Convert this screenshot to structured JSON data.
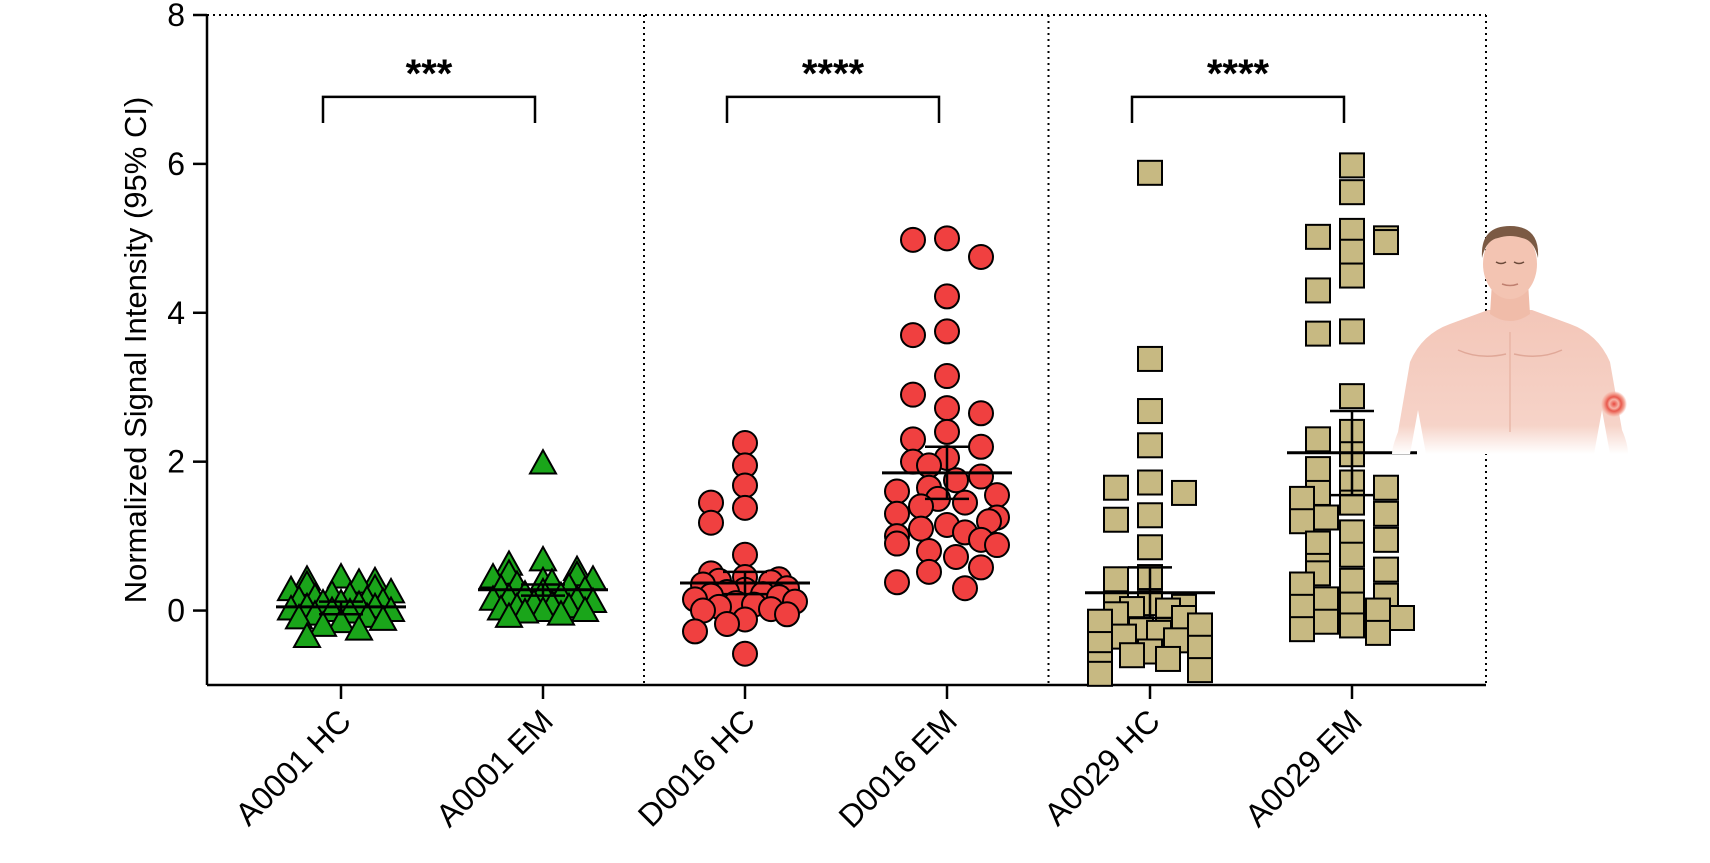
{
  "chart_data": {
    "type": "scatter",
    "title": "",
    "ylabel": "Normalized Signal Intensity (95% CI)",
    "ylim": [
      -1,
      8
    ],
    "yticks": [
      0,
      2,
      4,
      6,
      8
    ],
    "grid": false,
    "categories": [
      "A0001 HC",
      "A0001 EM",
      "D0016 HC",
      "D0016 EM",
      "A0029 HC",
      "A0029 EM"
    ],
    "groups": [
      {
        "category": "A0001 HC",
        "marker": "triangle",
        "color": "#1aa51a",
        "mean": 0.05,
        "ci": [
          -0.05,
          0.12
        ],
        "values": [
          0.45,
          0.42,
          0.4,
          0.38,
          0.35,
          0.3,
          0.28,
          0.25,
          0.22,
          0.2,
          0.18,
          0.15,
          0.15,
          0.12,
          0.1,
          0.1,
          0.08,
          0.05,
          0.05,
          0.02,
          0.0,
          0.0,
          -0.02,
          -0.05,
          -0.08,
          -0.1,
          -0.12,
          -0.15,
          -0.2,
          -0.25,
          -0.35
        ]
      },
      {
        "category": "A0001 EM",
        "marker": "triangle",
        "color": "#1aa51a",
        "mean": 0.28,
        "ci": [
          0.2,
          0.35
        ],
        "values": [
          1.98,
          0.68,
          0.62,
          0.55,
          0.5,
          0.48,
          0.45,
          0.42,
          0.4,
          0.38,
          0.35,
          0.32,
          0.3,
          0.28,
          0.25,
          0.22,
          0.2,
          0.18,
          0.15,
          0.12,
          0.1,
          0.08,
          0.05,
          0.05,
          0.02,
          0.0,
          0.0,
          -0.02,
          -0.05,
          -0.08,
          0.15
        ]
      },
      {
        "category": "D0016 HC",
        "marker": "circle",
        "color": "#f04040",
        "mean": 0.37,
        "ci": [
          0.22,
          0.52
        ],
        "values": [
          2.25,
          1.95,
          1.68,
          1.45,
          1.38,
          1.18,
          0.75,
          0.5,
          0.45,
          0.42,
          0.4,
          0.38,
          0.35,
          0.3,
          0.28,
          0.25,
          0.22,
          0.2,
          0.18,
          0.15,
          0.12,
          0.1,
          0.08,
          0.05,
          0.02,
          0.0,
          -0.05,
          -0.12,
          -0.18,
          -0.28,
          -0.58
        ]
      },
      {
        "category": "D0016 EM",
        "marker": "circle",
        "color": "#f04040",
        "mean": 1.85,
        "ci": [
          1.5,
          2.2
        ],
        "values": [
          5.0,
          4.98,
          4.75,
          4.22,
          3.75,
          3.7,
          3.15,
          2.9,
          2.72,
          2.65,
          2.4,
          2.3,
          2.2,
          2.05,
          2.0,
          1.95,
          1.8,
          1.75,
          1.65,
          1.6,
          1.55,
          1.5,
          1.45,
          1.4,
          1.3,
          1.25,
          1.2,
          1.15,
          1.1,
          1.05,
          1.0,
          0.95,
          0.9,
          0.88,
          0.8,
          0.72,
          0.58,
          0.52,
          0.38,
          0.3
        ]
      },
      {
        "category": "A0029 HC",
        "marker": "square",
        "color": "#c7b982",
        "mean": 0.24,
        "ci": [
          -0.1,
          0.58
        ],
        "values": [
          5.88,
          3.38,
          2.68,
          2.22,
          1.72,
          1.65,
          1.58,
          1.28,
          1.22,
          0.85,
          0.45,
          0.42,
          0.1,
          0.08,
          0.05,
          0.02,
          0.0,
          -0.05,
          -0.1,
          -0.15,
          -0.2,
          -0.25,
          -0.3,
          -0.35,
          -0.4,
          -0.45,
          -0.5,
          -0.55,
          -0.6,
          -0.65,
          -0.72,
          -0.8,
          -0.85
        ]
      },
      {
        "category": "A0029 EM",
        "marker": "square",
        "color": "#c7b982",
        "mean": 2.12,
        "ci": [
          1.55,
          2.68
        ],
        "values": [
          5.98,
          5.62,
          5.1,
          5.02,
          5.0,
          4.95,
          4.82,
          4.5,
          4.3,
          3.75,
          3.72,
          2.88,
          2.4,
          2.3,
          2.1,
          1.9,
          1.72,
          1.65,
          1.58,
          1.5,
          1.45,
          1.3,
          1.25,
          1.2,
          1.05,
          0.95,
          0.9,
          0.75,
          0.6,
          0.55,
          0.5,
          0.4,
          0.35,
          0.2,
          0.15,
          0.08,
          0.05,
          0.0,
          -0.1,
          -0.15,
          -0.2,
          -0.25,
          -0.3
        ]
      }
    ],
    "comparisons": [
      {
        "from": "A0001 HC",
        "to": "A0001 EM",
        "label": "***"
      },
      {
        "from": "D0016 HC",
        "to": "D0016 EM",
        "label": "****"
      },
      {
        "from": "A0029 HC",
        "to": "A0029 EM",
        "label": "****"
      }
    ]
  },
  "illustration": {
    "icon": "human-torso-with-erythema-migrans-rash-icon"
  }
}
